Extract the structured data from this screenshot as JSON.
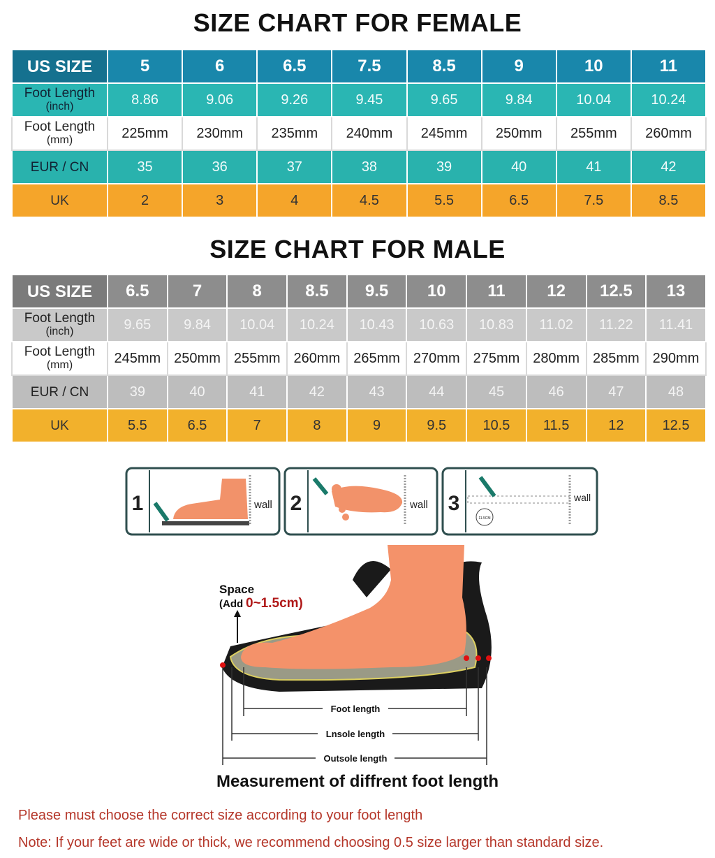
{
  "female": {
    "title": "SIZE CHART FOR FEMALE",
    "rows": [
      {
        "label": "US SIZE",
        "cells": [
          "5",
          "6",
          "6.5",
          "7.5",
          "8.5",
          "9",
          "10",
          "11"
        ]
      },
      {
        "label": "Foot Length",
        "unit": "(inch)",
        "cells": [
          "8.86",
          "9.06",
          "9.26",
          "9.45",
          "9.65",
          "9.84",
          "10.04",
          "10.24"
        ]
      },
      {
        "label": "Foot Length",
        "unit": "(mm)",
        "cells": [
          "225mm",
          "230mm",
          "235mm",
          "240mm",
          "245mm",
          "250mm",
          "255mm",
          "260mm"
        ]
      },
      {
        "label": "EUR / CN",
        "cells": [
          "35",
          "36",
          "37",
          "38",
          "39",
          "40",
          "41",
          "42"
        ]
      },
      {
        "label": "UK",
        "cells": [
          "2",
          "3",
          "4",
          "4.5",
          "5.5",
          "6.5",
          "7.5",
          "8.5"
        ]
      }
    ]
  },
  "male": {
    "title": "SIZE CHART FOR MALE",
    "rows": [
      {
        "label": "US SIZE",
        "cells": [
          "6.5",
          "7",
          "8",
          "8.5",
          "9.5",
          "10",
          "11",
          "12",
          "12.5",
          "13"
        ]
      },
      {
        "label": "Foot Length",
        "unit": "(inch)",
        "cells": [
          "9.65",
          "9.84",
          "10.04",
          "10.24",
          "10.43",
          "10.63",
          "10.83",
          "11.02",
          "11.22",
          "11.41"
        ]
      },
      {
        "label": "Foot Length",
        "unit": "(mm)",
        "cells": [
          "245mm",
          "250mm",
          "255mm",
          "260mm",
          "265mm",
          "270mm",
          "275mm",
          "280mm",
          "285mm",
          "290mm"
        ]
      },
      {
        "label": "EUR / CN",
        "cells": [
          "39",
          "40",
          "41",
          "42",
          "43",
          "44",
          "45",
          "46",
          "47",
          "48"
        ]
      },
      {
        "label": "UK",
        "cells": [
          "5.5",
          "6.5",
          "7",
          "8",
          "9",
          "9.5",
          "10.5",
          "11.5",
          "12",
          "12.5"
        ]
      }
    ]
  },
  "steps": [
    {
      "number": "1",
      "label": "wall"
    },
    {
      "number": "2",
      "label": "wall"
    },
    {
      "number": "3",
      "label": "wall",
      "mark": "11.5CM"
    }
  ],
  "diagram": {
    "space": "Space",
    "add": "(Add",
    "range": "0~1.5cm)",
    "foot_length": "Foot length",
    "insole_length": "Lnsole length",
    "outsole_length": "Outsole length",
    "caption": "Measurement of diffrent foot length"
  },
  "notes": [
    "Please must choose the correct size  according to your foot length",
    "Note: If your feet are wide or thick, we recommend choosing 0.5 size larger than standard size."
  ]
}
